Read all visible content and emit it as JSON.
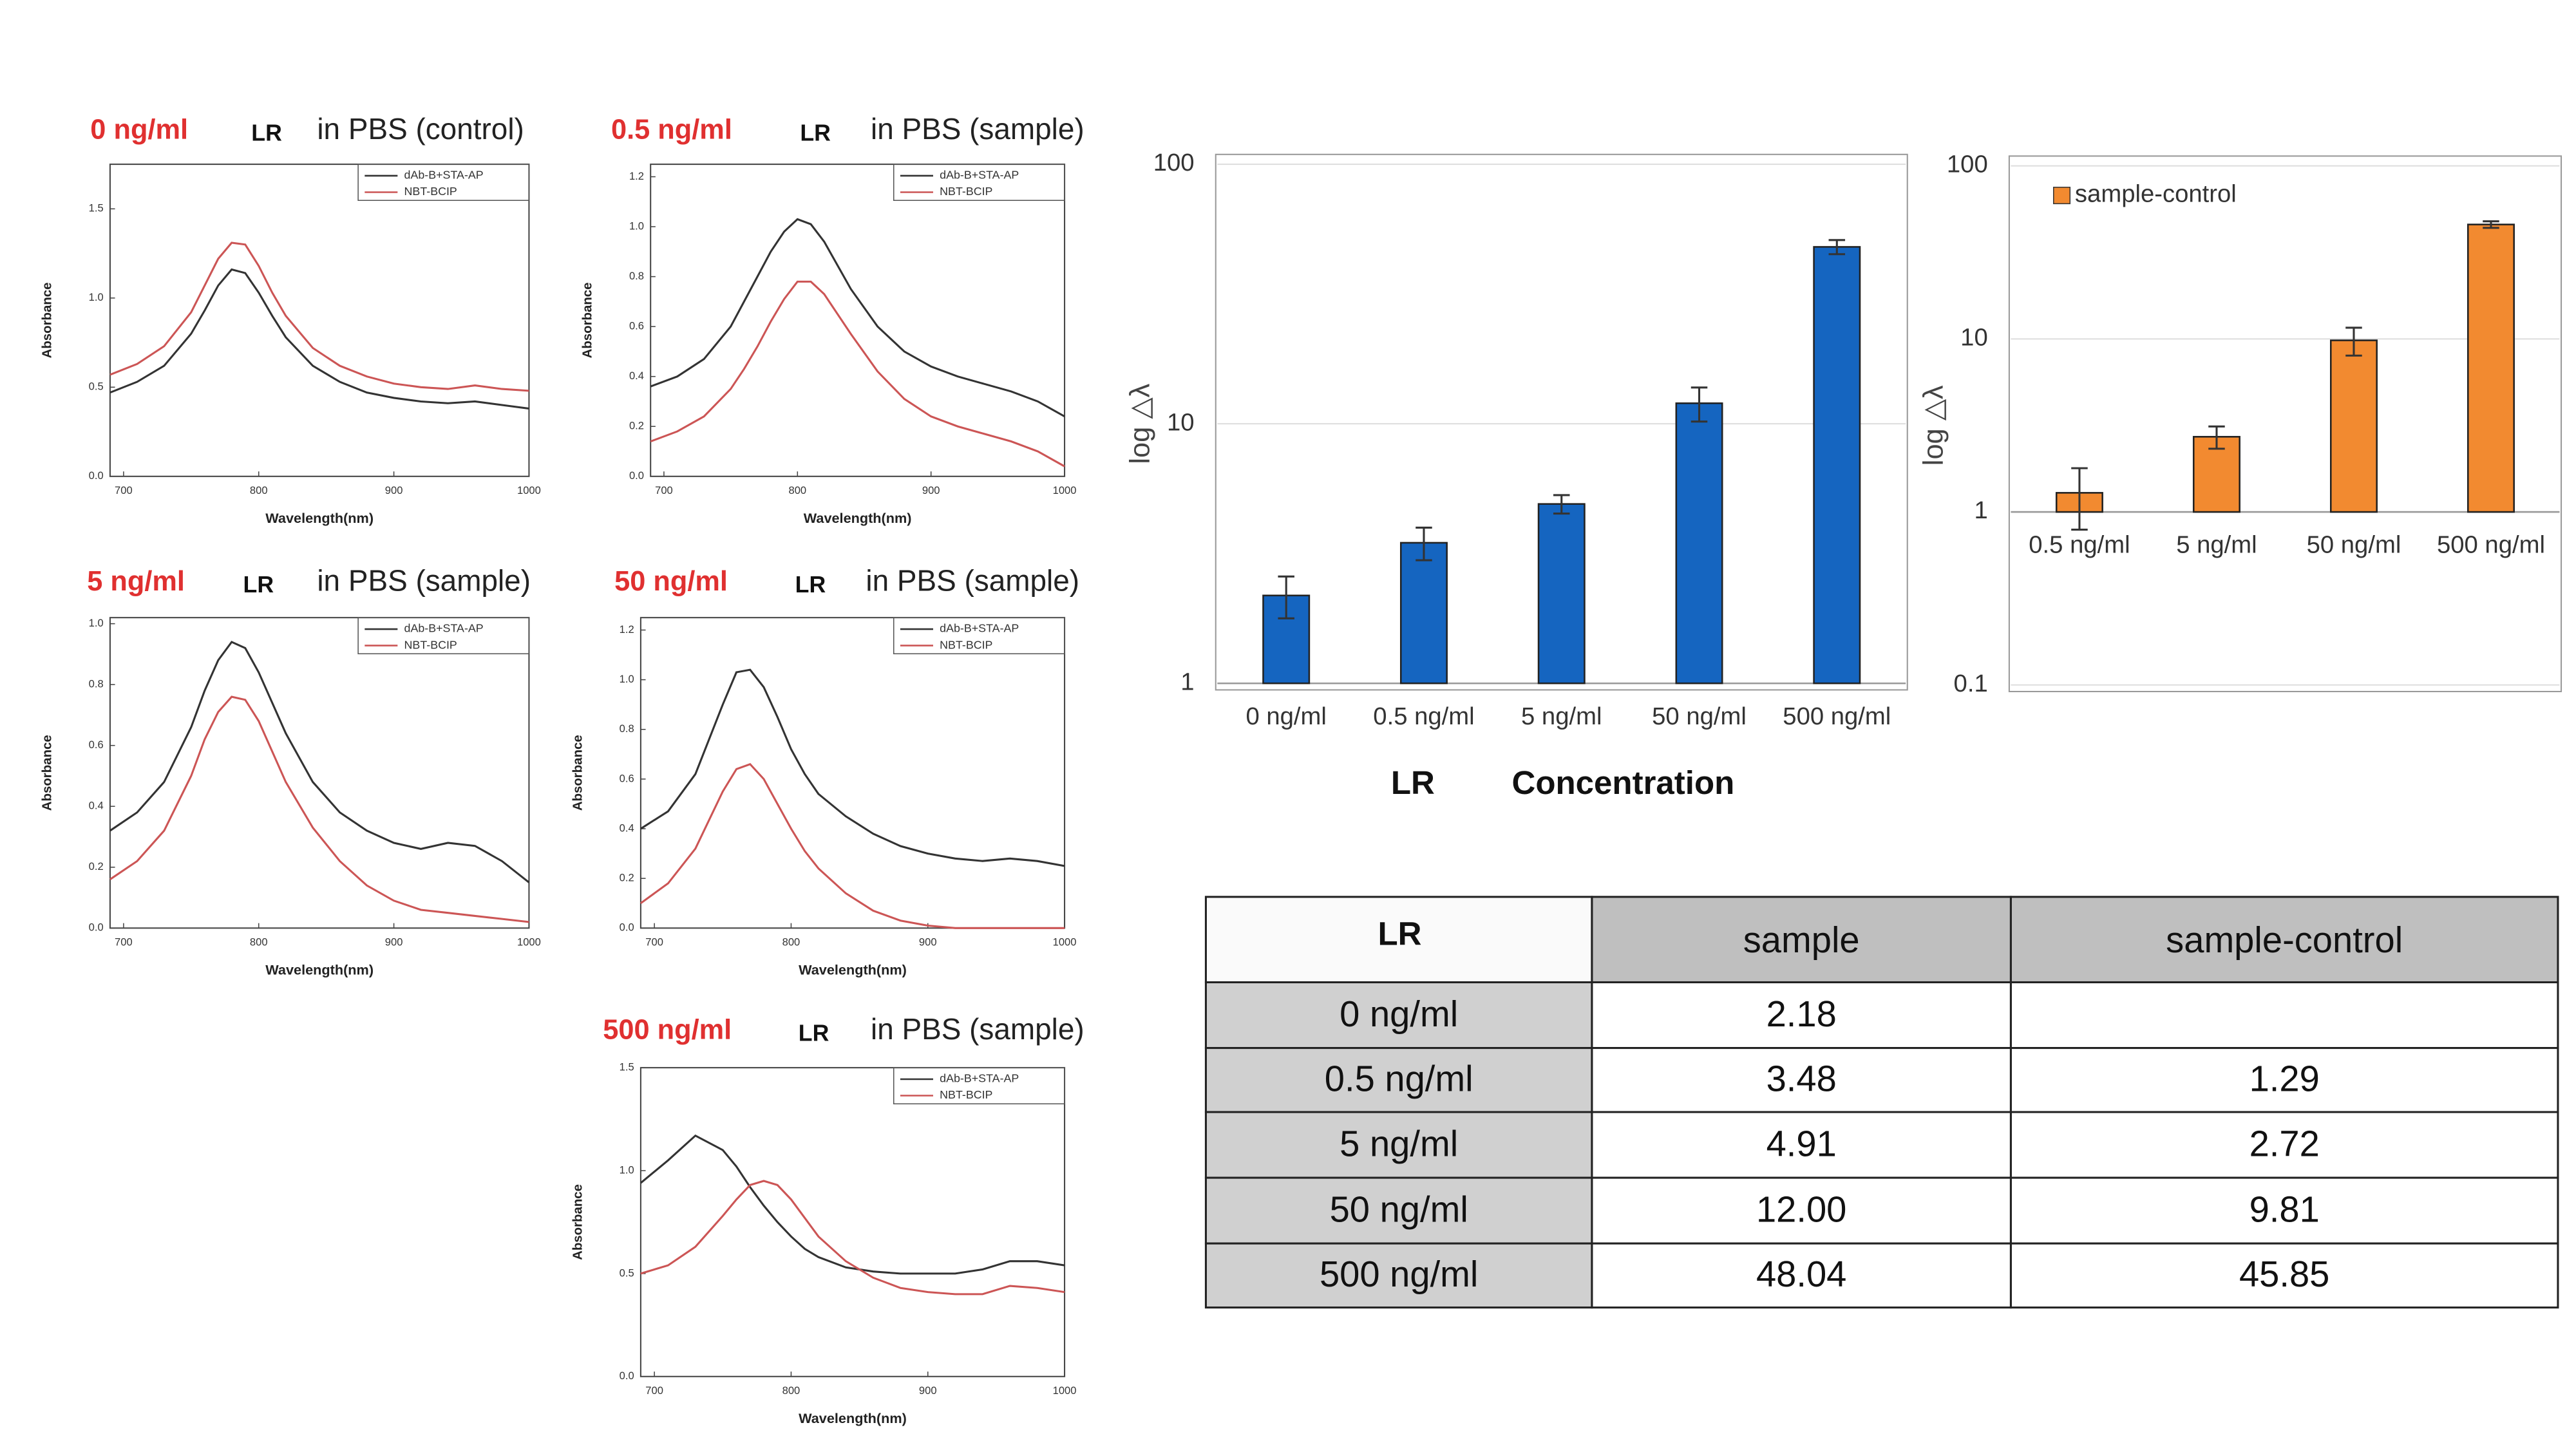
{
  "chart_data": [
    {
      "type": "line",
      "title": "0 ng/ml",
      "title_tag": "LR",
      "title_suffix": "in PBS (control)",
      "ylabel": "Absorbance",
      "xlabel": "Wavelength(nm)",
      "x": [
        690,
        710,
        730,
        750,
        760,
        770,
        780,
        790,
        800,
        810,
        820,
        840,
        860,
        880,
        900,
        920,
        940,
        960,
        980,
        1000
      ],
      "xlim": [
        690,
        1000
      ],
      "xticks": [
        700,
        800,
        900,
        1000
      ],
      "ylim": [
        0,
        1.75
      ],
      "yticks": [
        {
          "value": 0,
          "label": "0.0"
        },
        0.5,
        {
          "value": 1,
          "label": "1.0"
        },
        1.5
      ],
      "series": [
        {
          "name": "dAb-B+STA-AP",
          "color": "#333333",
          "values": [
            0.47,
            0.53,
            0.62,
            0.8,
            0.93,
            1.07,
            1.16,
            1.14,
            1.03,
            0.9,
            0.78,
            0.62,
            0.53,
            0.47,
            0.44,
            0.42,
            0.41,
            0.42,
            0.4,
            0.38
          ]
        },
        {
          "name": "NBT-BCIP",
          "color": "#cc5555",
          "values": [
            0.57,
            0.63,
            0.73,
            0.92,
            1.07,
            1.22,
            1.31,
            1.3,
            1.18,
            1.03,
            0.9,
            0.72,
            0.62,
            0.56,
            0.52,
            0.5,
            0.49,
            0.51,
            0.49,
            0.48
          ]
        }
      ]
    },
    {
      "type": "line",
      "title": "0.5 ng/ml",
      "title_tag": "LR",
      "title_suffix": "in PBS (sample)",
      "ylabel": "Absorbance",
      "xlabel": "Wavelength(nm)",
      "x": [
        690,
        710,
        730,
        750,
        760,
        770,
        780,
        790,
        800,
        810,
        820,
        840,
        860,
        880,
        900,
        920,
        940,
        960,
        980,
        1000
      ],
      "xlim": [
        690,
        1000
      ],
      "xticks": [
        700,
        800,
        900,
        1000
      ],
      "ylim": [
        0,
        1.25
      ],
      "yticks": [
        {
          "value": 0,
          "label": "0.0"
        },
        0.2,
        0.4,
        0.6,
        0.8,
        {
          "value": 1,
          "label": "1.0"
        },
        1.2
      ],
      "series": [
        {
          "name": "dAb-B+STA-AP",
          "color": "#333333",
          "values": [
            0.36,
            0.4,
            0.47,
            0.6,
            0.7,
            0.8,
            0.9,
            0.98,
            1.03,
            1.01,
            0.94,
            0.75,
            0.6,
            0.5,
            0.44,
            0.4,
            0.37,
            0.34,
            0.3,
            0.24
          ]
        },
        {
          "name": "NBT-BCIP",
          "color": "#cc5555",
          "values": [
            0.14,
            0.18,
            0.24,
            0.35,
            0.43,
            0.52,
            0.62,
            0.71,
            0.78,
            0.78,
            0.73,
            0.57,
            0.42,
            0.31,
            0.24,
            0.2,
            0.17,
            0.14,
            0.1,
            0.04
          ]
        }
      ]
    },
    {
      "type": "line",
      "title": "5 ng/ml",
      "title_tag": "LR",
      "title_suffix": "in PBS (sample)",
      "ylabel": "Absorbance",
      "xlabel": "Wavelength(nm)",
      "x": [
        690,
        710,
        730,
        750,
        760,
        770,
        780,
        790,
        800,
        810,
        820,
        840,
        860,
        880,
        900,
        920,
        940,
        960,
        980,
        1000
      ],
      "xlim": [
        690,
        1000
      ],
      "xticks": [
        700,
        800,
        900,
        1000
      ],
      "ylim": [
        0,
        1.02
      ],
      "yticks": [
        {
          "value": 0,
          "label": "0.0"
        },
        0.2,
        0.4,
        0.6,
        0.8,
        {
          "value": 1,
          "label": "1.0"
        }
      ],
      "series": [
        {
          "name": "dAb-B+STA-AP",
          "color": "#333333",
          "values": [
            0.32,
            0.38,
            0.48,
            0.66,
            0.78,
            0.88,
            0.94,
            0.92,
            0.84,
            0.74,
            0.64,
            0.48,
            0.38,
            0.32,
            0.28,
            0.26,
            0.28,
            0.27,
            0.22,
            0.15
          ]
        },
        {
          "name": "NBT-BCIP",
          "color": "#cc5555",
          "values": [
            0.16,
            0.22,
            0.32,
            0.5,
            0.62,
            0.71,
            0.76,
            0.75,
            0.68,
            0.58,
            0.48,
            0.33,
            0.22,
            0.14,
            0.09,
            0.06,
            0.05,
            0.04,
            0.03,
            0.02
          ]
        }
      ]
    },
    {
      "type": "line",
      "title": "50 ng/ml",
      "title_tag": "LR",
      "title_suffix": "in PBS (sample)",
      "ylabel": "Absorbance",
      "xlabel": "Wavelength(nm)",
      "x": [
        690,
        710,
        730,
        750,
        760,
        770,
        780,
        790,
        800,
        810,
        820,
        840,
        860,
        880,
        900,
        920,
        940,
        960,
        980,
        1000
      ],
      "xlim": [
        690,
        1000
      ],
      "xticks": [
        700,
        800,
        900,
        1000
      ],
      "ylim": [
        0,
        1.25
      ],
      "yticks": [
        {
          "value": 0,
          "label": "0.0"
        },
        0.2,
        0.4,
        0.6,
        0.8,
        {
          "value": 1,
          "label": "1.0"
        },
        1.2
      ],
      "series": [
        {
          "name": "dAb-B+STA-AP",
          "color": "#333333",
          "values": [
            0.4,
            0.47,
            0.62,
            0.9,
            1.03,
            1.04,
            0.97,
            0.85,
            0.72,
            0.62,
            0.54,
            0.45,
            0.38,
            0.33,
            0.3,
            0.28,
            0.27,
            0.28,
            0.27,
            0.25
          ]
        },
        {
          "name": "NBT-BCIP",
          "color": "#cc5555",
          "values": [
            0.1,
            0.18,
            0.32,
            0.55,
            0.64,
            0.66,
            0.6,
            0.5,
            0.4,
            0.31,
            0.24,
            0.14,
            0.07,
            0.03,
            0.01,
            0,
            0,
            0,
            0,
            0
          ]
        }
      ]
    },
    {
      "type": "line",
      "title": "500 ng/ml",
      "title_tag": "LR",
      "title_suffix": "in PBS (sample)",
      "ylabel": "Absorbance",
      "xlabel": "Wavelength(nm)",
      "x": [
        690,
        710,
        730,
        750,
        760,
        770,
        780,
        790,
        800,
        810,
        820,
        840,
        860,
        880,
        900,
        920,
        940,
        960,
        980,
        1000
      ],
      "xlim": [
        690,
        1000
      ],
      "xticks": [
        700,
        800,
        900,
        1000
      ],
      "ylim": [
        0,
        1.5
      ],
      "yticks": [
        {
          "value": 0,
          "label": "0.0"
        },
        0.5,
        {
          "value": 1,
          "label": "1.0"
        },
        1.5
      ],
      "series": [
        {
          "name": "dAb-B+STA-AP",
          "color": "#333333",
          "values": [
            0.94,
            1.05,
            1.17,
            1.1,
            1.02,
            0.92,
            0.83,
            0.75,
            0.68,
            0.62,
            0.58,
            0.53,
            0.51,
            0.5,
            0.5,
            0.5,
            0.52,
            0.56,
            0.56,
            0.54
          ]
        },
        {
          "name": "NBT-BCIP",
          "color": "#cc5555",
          "values": [
            0.5,
            0.54,
            0.63,
            0.78,
            0.86,
            0.93,
            0.95,
            0.93,
            0.86,
            0.77,
            0.68,
            0.56,
            0.48,
            0.43,
            0.41,
            0.4,
            0.4,
            0.44,
            0.43,
            0.41
          ]
        }
      ]
    },
    {
      "type": "bar",
      "ylabel": "log △λ",
      "xlabel_tag": "LR",
      "xlabel": "Concentration",
      "log_scale": true,
      "grid": true,
      "categories": [
        "0 ng/ml",
        "0.5 ng/ml",
        "5 ng/ml",
        "50 ng/ml",
        "500 ng/ml"
      ],
      "values": [
        2.18,
        3.48,
        4.91,
        12.0,
        48.04
      ],
      "errors": [
        0.4,
        0.5,
        0.4,
        1.8,
        3
      ],
      "color": "#1565c0",
      "ylim": [
        1,
        100
      ],
      "yticks": [
        1,
        10,
        100
      ],
      "baseline": 1
    },
    {
      "type": "bar",
      "ylabel": "log △λ",
      "log_scale": true,
      "grid": true,
      "legend": "top-left",
      "categories": [
        "0.5 ng/ml",
        "5 ng/ml",
        "50 ng/ml",
        "500 ng/ml"
      ],
      "series": [
        {
          "name": "sample-control",
          "color": "#f28a30",
          "values": [
            1.29,
            2.72,
            9.81,
            45.85
          ],
          "errors": [
            0.5,
            0.4,
            1.8,
            2
          ]
        }
      ],
      "ylim": [
        0.1,
        100
      ],
      "yticks": [
        0.1,
        1,
        10,
        100
      ],
      "baseline": 1
    }
  ],
  "table": {
    "header": [
      "LR",
      "sample",
      "sample-control"
    ],
    "rows": [
      [
        "0 ng/ml",
        "2.18",
        null
      ],
      [
        "0.5 ng/ml",
        "3.48",
        "1.29"
      ],
      [
        "5 ng/ml",
        "4.91",
        "2.72"
      ],
      [
        "50 ng/ml",
        "12.00",
        "9.81"
      ],
      [
        "500 ng/ml",
        "48.04",
        "45.85"
      ]
    ]
  }
}
